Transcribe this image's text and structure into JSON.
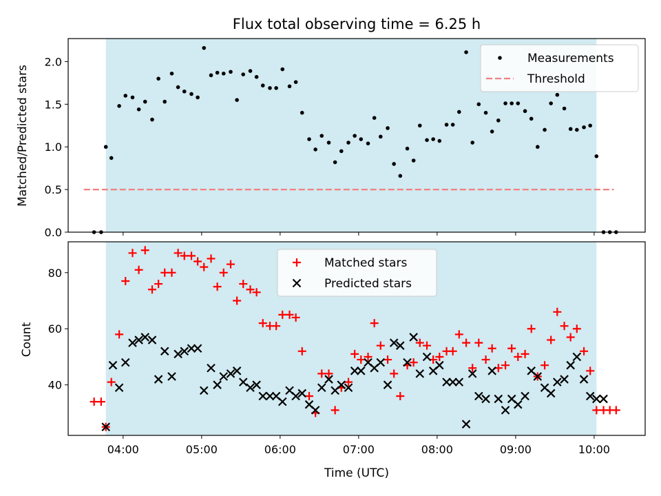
{
  "chart_data": {
    "title": "Flux total observing time = 6.25 h",
    "xlabel": "Time (UTC)",
    "x_ticks": [
      "04:00",
      "05:00",
      "06:00",
      "07:00",
      "08:00",
      "09:00",
      "10:00"
    ],
    "x_range_hours": [
      3.3,
      10.65
    ],
    "observing_window_hours": [
      3.78,
      10.03
    ],
    "shade_color": "#add8e6",
    "panels": [
      {
        "type": "scatter",
        "ylabel": "Matched/Predicted stars",
        "ylim": [
          0,
          2.27
        ],
        "y_ticks": [
          "0.0",
          "0.5",
          "1.0",
          "1.5",
          "2.0"
        ],
        "legend_position": "top-right",
        "series": [
          {
            "name": "Measurements",
            "marker": "dot",
            "color": "#000000",
            "x": [
              3.63,
              3.72,
              3.78,
              3.85,
              3.95,
              4.03,
              4.12,
              4.2,
              4.28,
              4.37,
              4.45,
              4.53,
              4.62,
              4.7,
              4.78,
              4.87,
              4.95,
              5.03,
              5.12,
              5.2,
              5.28,
              5.37,
              5.45,
              5.53,
              5.62,
              5.7,
              5.78,
              5.87,
              5.95,
              6.03,
              6.12,
              6.2,
              6.28,
              6.37,
              6.45,
              6.53,
              6.62,
              6.7,
              6.78,
              6.87,
              6.95,
              7.03,
              7.12,
              7.2,
              7.28,
              7.37,
              7.45,
              7.53,
              7.62,
              7.7,
              7.78,
              7.87,
              7.95,
              8.03,
              8.12,
              8.2,
              8.28,
              8.37,
              8.45,
              8.53,
              8.62,
              8.7,
              8.78,
              8.87,
              8.95,
              9.03,
              9.12,
              9.2,
              9.28,
              9.37,
              9.45,
              9.53,
              9.62,
              9.7,
              9.78,
              9.87,
              9.95,
              10.03,
              10.12,
              10.2,
              10.28
            ],
            "y": [
              0,
              0,
              1.0,
              0.87,
              1.48,
              1.6,
              1.58,
              1.44,
              1.53,
              1.32,
              1.8,
              1.53,
              1.86,
              1.7,
              1.65,
              1.62,
              1.58,
              2.16,
              1.84,
              1.87,
              1.86,
              1.88,
              1.55,
              1.85,
              1.89,
              1.82,
              1.72,
              1.69,
              1.69,
              1.91,
              1.71,
              1.76,
              1.4,
              1.09,
              0.97,
              1.13,
              1.05,
              0.82,
              0.95,
              1.05,
              1.13,
              1.09,
              1.04,
              1.34,
              1.12,
              1.22,
              0.8,
              0.66,
              0.98,
              0.84,
              1.25,
              1.08,
              1.09,
              1.07,
              1.26,
              1.26,
              1.41,
              2.11,
              1.05,
              1.5,
              1.4,
              1.18,
              1.31,
              1.51,
              1.51,
              1.51,
              1.42,
              1.33,
              1.0,
              1.2,
              1.51,
              1.61,
              1.45,
              1.21,
              1.2,
              1.23,
              1.25,
              0.89,
              0,
              0,
              0
            ]
          },
          {
            "name": "Threshold",
            "marker": "dashed-line",
            "color": "#f08080",
            "x": [
              3.5,
              10.25
            ],
            "y": [
              0.5,
              0.5
            ]
          }
        ]
      },
      {
        "type": "scatter",
        "ylabel": "Count",
        "ylim": [
          22,
          91
        ],
        "y_ticks": [
          "40",
          "60",
          "80"
        ],
        "legend_position": "top-center",
        "series": [
          {
            "name": "Matched stars",
            "marker": "plus",
            "color": "#ff0000",
            "x": [
              3.63,
              3.72,
              3.78,
              3.85,
              3.95,
              4.03,
              4.12,
              4.2,
              4.28,
              4.37,
              4.45,
              4.53,
              4.62,
              4.7,
              4.78,
              4.87,
              4.95,
              5.03,
              5.12,
              5.2,
              5.28,
              5.37,
              5.45,
              5.53,
              5.62,
              5.7,
              5.78,
              5.87,
              5.95,
              6.03,
              6.12,
              6.2,
              6.28,
              6.37,
              6.45,
              6.53,
              6.62,
              6.7,
              6.78,
              6.87,
              6.95,
              7.03,
              7.12,
              7.2,
              7.28,
              7.37,
              7.45,
              7.53,
              7.62,
              7.7,
              7.78,
              7.87,
              7.95,
              8.03,
              8.12,
              8.2,
              8.28,
              8.37,
              8.45,
              8.53,
              8.62,
              8.7,
              8.78,
              8.87,
              8.95,
              9.03,
              9.12,
              9.2,
              9.28,
              9.37,
              9.45,
              9.53,
              9.62,
              9.7,
              9.78,
              9.87,
              9.95,
              10.03,
              10.12,
              10.2,
              10.28
            ],
            "y": [
              34,
              34,
              25,
              41,
              58,
              77,
              87,
              81,
              88,
              74,
              76,
              80,
              80,
              87,
              86,
              86,
              84,
              82,
              85,
              75,
              80,
              83,
              70,
              76,
              74,
              73,
              62,
              61,
              61,
              65,
              65,
              64,
              52,
              36,
              30,
              44,
              44,
              31,
              39,
              41,
              51,
              49,
              50,
              62,
              54,
              49,
              44,
              36,
              47,
              48,
              55,
              54,
              49,
              50,
              52,
              52,
              58,
              55,
              46,
              55,
              49,
              53,
              46,
              47,
              53,
              50,
              51,
              60,
              43,
              47,
              56,
              66,
              61,
              57,
              60,
              52,
              45,
              31,
              31,
              31,
              31
            ]
          },
          {
            "name": "Predicted stars",
            "marker": "x",
            "color": "#000000",
            "x": [
              3.78,
              3.87,
              3.95,
              4.03,
              4.12,
              4.2,
              4.28,
              4.37,
              4.45,
              4.53,
              4.62,
              4.7,
              4.78,
              4.87,
              4.95,
              5.03,
              5.12,
              5.2,
              5.28,
              5.37,
              5.45,
              5.53,
              5.62,
              5.7,
              5.78,
              5.87,
              5.95,
              6.03,
              6.12,
              6.2,
              6.28,
              6.37,
              6.45,
              6.53,
              6.62,
              6.7,
              6.78,
              6.87,
              6.95,
              7.03,
              7.12,
              7.2,
              7.28,
              7.37,
              7.45,
              7.53,
              7.62,
              7.7,
              7.78,
              7.87,
              7.95,
              8.03,
              8.12,
              8.2,
              8.28,
              8.37,
              8.45,
              8.53,
              8.62,
              8.7,
              8.78,
              8.87,
              8.95,
              9.03,
              9.12,
              9.2,
              9.28,
              9.37,
              9.45,
              9.53,
              9.62,
              9.7,
              9.78,
              9.87,
              9.95,
              10.03,
              10.12
            ],
            "y": [
              25,
              47,
              39,
              48,
              55,
              56,
              57,
              56,
              42,
              52,
              43,
              51,
              52,
              53,
              53,
              38,
              46,
              40,
              43,
              44,
              45,
              41,
              39,
              40,
              36,
              36,
              36,
              34,
              38,
              36,
              37,
              33,
              31,
              39,
              42,
              38,
              40,
              39,
              45,
              45,
              48,
              46,
              48,
              40,
              55,
              54,
              48,
              57,
              44,
              50,
              45,
              47,
              41,
              41,
              41,
              26,
              44,
              36,
              35,
              45,
              35,
              31,
              35,
              33,
              36,
              45,
              43,
              39,
              37,
              41,
              42,
              47,
              50,
              42,
              36,
              35,
              35
            ]
          }
        ]
      }
    ]
  }
}
